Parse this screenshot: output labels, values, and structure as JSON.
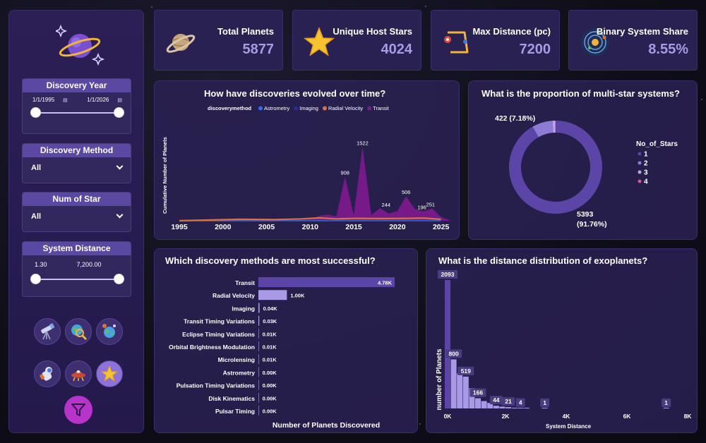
{
  "sidebar": {
    "filters": {
      "discovery_year": {
        "title": "Discovery Year",
        "start": "1/1/1995",
        "end": "1/1/2026"
      },
      "discovery_method": {
        "title": "Discovery Method",
        "value": "All"
      },
      "num_of_star": {
        "title": "Num of Star",
        "value": "All"
      },
      "system_distance": {
        "title": "System Distance",
        "min": "1.30",
        "max": "7,200.00"
      }
    },
    "nav_icons": [
      "telescope-icon",
      "globe-search-icon",
      "planet-icon",
      "astronaut-icon",
      "ufo-icon",
      "star-icon"
    ],
    "active_nav": "star-icon",
    "filter_button_icon": "funnel-icon"
  },
  "kpis": [
    {
      "label": "Total Planets",
      "value": "5877",
      "icon": "saturn-icon"
    },
    {
      "label": "Unique Host Stars",
      "value": "4024",
      "icon": "star-icon"
    },
    {
      "label": "Max Distance (pc)",
      "value": "7200",
      "icon": "distance-map-icon"
    },
    {
      "label": "Binary System Share",
      "value": "8.55%",
      "icon": "orbit-icon"
    }
  ],
  "colors": {
    "accent": "#a89be6",
    "astrometry": "#2f6cf5",
    "imaging": "#2a2aa0",
    "radial_velocity": "#e0703a",
    "transit": "#7a1a8c",
    "bar_primary": "#5b46a8",
    "bar_secondary": "#a999e6"
  },
  "chart_data": [
    {
      "type": "area",
      "title": "How have discoveries evolved over time?",
      "ylabel": "Cumulative Number of Planets",
      "legend_title": "discoverymethod",
      "legend_position": "top",
      "x_ticks": [
        "1995",
        "2000",
        "2005",
        "2010",
        "2015",
        "2020",
        "2025"
      ],
      "xlim": [
        1995,
        2026
      ],
      "ylim": [
        0,
        1600
      ],
      "series": [
        {
          "name": "Astrometry",
          "points": [
            [
              1995,
              0
            ],
            [
              2013,
              1
            ],
            [
              2022,
              1
            ],
            [
              2023,
              1
            ],
            [
              2025,
              2
            ]
          ]
        },
        {
          "name": "Imaging",
          "points": [
            [
              1995,
              0
            ],
            [
              2004,
              2
            ],
            [
              2008,
              8
            ],
            [
              2013,
              5
            ],
            [
              2018,
              4
            ],
            [
              2022,
              5
            ],
            [
              2025,
              4
            ]
          ]
        },
        {
          "name": "Radial Velocity",
          "points": [
            [
              1995,
              1
            ],
            [
              1998,
              15
            ],
            [
              2002,
              30
            ],
            [
              2006,
              25
            ],
            [
              2009,
              40
            ],
            [
              2011,
              60
            ],
            [
              2013,
              40
            ],
            [
              2015,
              50
            ],
            [
              2018,
              45
            ],
            [
              2021,
              50
            ],
            [
              2023,
              55
            ],
            [
              2025,
              30
            ]
          ]
        },
        {
          "name": "Transit",
          "points": [
            [
              1995,
              0
            ],
            [
              2001,
              0
            ],
            [
              2002,
              2
            ],
            [
              2005,
              5
            ],
            [
              2008,
              15
            ],
            [
              2010,
              30
            ],
            [
              2011,
              100
            ],
            [
              2012,
              130
            ],
            [
              2013,
              90
            ],
            [
              2014,
              908
            ],
            [
              2015,
              120
            ],
            [
              2016,
              1522
            ],
            [
              2017,
              120
            ],
            [
              2018,
              260
            ],
            [
              2019,
              150
            ],
            [
              2020,
              200
            ],
            [
              2021,
              506
            ],
            [
              2022,
              244
            ],
            [
              2023,
              196
            ],
            [
              2024,
              251
            ],
            [
              2025,
              80
            ],
            [
              2026,
              10
            ]
          ]
        }
      ],
      "data_labels": [
        {
          "x": 2014,
          "y": 908,
          "text": "908"
        },
        {
          "x": 2016,
          "y": 1522,
          "text": "1522"
        },
        {
          "x": 2018.7,
          "y": 244,
          "text": "244"
        },
        {
          "x": 2021,
          "y": 506,
          "text": "506"
        },
        {
          "x": 2022.8,
          "y": 196,
          "text": "196"
        },
        {
          "x": 2023.8,
          "y": 251,
          "text": "251"
        }
      ]
    },
    {
      "type": "pie",
      "title": "What is the proportion of multi-star systems?",
      "legend_title": "No_of_Stars",
      "legend_position": "right",
      "slices": [
        {
          "name": "1",
          "value": 5393,
          "label": "5393",
          "pct_label": "(91.76%)",
          "color": "#5b46a8"
        },
        {
          "name": "2",
          "value": 422,
          "label": "422 (7.18%)",
          "pct_label": "",
          "color": "#8d7bd6"
        },
        {
          "name": "3",
          "value": 57,
          "label": "",
          "pct_label": "",
          "color": "#b7a8ee"
        },
        {
          "name": "4",
          "value": 5,
          "label": "",
          "pct_label": "",
          "color": "#e0529a"
        }
      ]
    },
    {
      "type": "bar",
      "orientation": "horizontal",
      "title": "Which discovery methods are most successful?",
      "xlabel": "Number of Planets Discovered",
      "categories": [
        "Transit",
        "Radial Velocity",
        "Imaging",
        "Transit Timing Variations",
        "Eclipse Timing Variations",
        "Orbital Brightness Modulation",
        "Microlensing",
        "Astrometry",
        "Pulsation Timing Variations",
        "Disk Kinematics",
        "Pulsar Timing"
      ],
      "values": [
        4780,
        1000,
        40,
        30,
        10,
        10,
        10,
        0,
        0,
        0,
        0
      ],
      "value_labels": [
        "4.78K",
        "1.00K",
        "0.04K",
        "0.03K",
        "0.01K",
        "0.01K",
        "0.01K",
        "0.00K",
        "0.00K",
        "0.00K",
        "0.00K"
      ],
      "xlim": [
        0,
        4780
      ]
    },
    {
      "type": "bar",
      "title": "What is the distance distribution of exoplanets?",
      "xlabel": "System Distance",
      "ylabel": "number of Planets",
      "x_ticks": [
        "0K",
        "2K",
        "4K",
        "6K",
        "8K"
      ],
      "xlim": [
        0,
        8000
      ],
      "ylim": [
        0,
        2093
      ],
      "bin_width": 200,
      "bins": [
        {
          "start": 0,
          "value": 2093,
          "label": "2093"
        },
        {
          "start": 200,
          "value": 800,
          "label": "800"
        },
        {
          "start": 400,
          "value": 570,
          "label": ""
        },
        {
          "start": 600,
          "value": 519,
          "label": "519"
        },
        {
          "start": 800,
          "value": 330,
          "label": ""
        },
        {
          "start": 1000,
          "value": 166,
          "label": "166"
        },
        {
          "start": 1200,
          "value": 120,
          "label": ""
        },
        {
          "start": 1400,
          "value": 90,
          "label": ""
        },
        {
          "start": 1600,
          "value": 44,
          "label": "44"
        },
        {
          "start": 1800,
          "value": 30,
          "label": ""
        },
        {
          "start": 2000,
          "value": 21,
          "label": "21"
        },
        {
          "start": 2200,
          "value": 12,
          "label": ""
        },
        {
          "start": 2400,
          "value": 4,
          "label": "4"
        },
        {
          "start": 2600,
          "value": 2,
          "label": ""
        },
        {
          "start": 3200,
          "value": 1,
          "label": "1"
        },
        {
          "start": 7200,
          "value": 1,
          "label": "1"
        }
      ]
    }
  ]
}
